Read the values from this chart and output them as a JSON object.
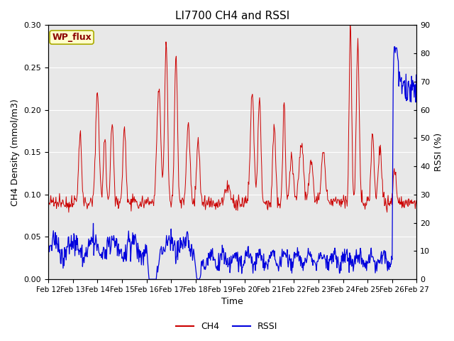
{
  "title": "LI7700 CH4 and RSSI",
  "xlabel": "Time",
  "ylabel_left": "CH4 Density (mmol/m3)",
  "ylabel_right": "RSSI (%)",
  "site_label": "WP_flux",
  "ylim_left": [
    0.0,
    0.3
  ],
  "ylim_right": [
    0,
    90
  ],
  "yticks_left": [
    0.0,
    0.05,
    0.1,
    0.15,
    0.2,
    0.25,
    0.3
  ],
  "yticks_right": [
    0,
    10,
    20,
    30,
    40,
    50,
    60,
    70,
    80,
    90
  ],
  "ch4_color": "#cc0000",
  "rssi_color": "#0000dd",
  "bg_color": "#e8e8e8",
  "grid_color": "#ffffff",
  "fig_bg": "#ffffff",
  "rssi_scale_factor": 3.333
}
